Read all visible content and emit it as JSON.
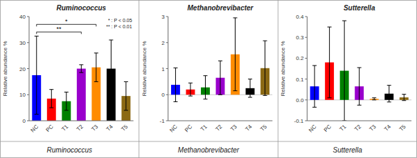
{
  "chart_data": [
    {
      "type": "bar",
      "title": "Ruminococcus",
      "caption": "Ruminococcus",
      "categories": [
        "NC",
        "PC",
        "T1",
        "T2",
        "T3",
        "T4",
        "T5"
      ],
      "values": [
        17.5,
        8.5,
        7.5,
        20.0,
        20.5,
        20.0,
        9.5
      ],
      "errors": [
        15.0,
        3.5,
        3.5,
        1.5,
        5.5,
        11.0,
        5.5
      ],
      "colors": [
        "#0000FF",
        "#FF0000",
        "#008000",
        "#9900CC",
        "#FF8C00",
        "#000000",
        "#8B6914"
      ],
      "ylabel": "Relative abundance %",
      "ylim": [
        0,
        40
      ],
      "yticks": [
        0,
        10,
        20,
        30,
        40
      ],
      "grid": false,
      "annotations": [
        {
          "text": "*",
          "from": "NC",
          "to": "T3"
        },
        {
          "text": "**",
          "from": "NC",
          "to": "T2"
        },
        {
          "text": "* : P < 0.05"
        },
        {
          "text": "** : P < 0.01"
        }
      ]
    },
    {
      "type": "bar",
      "title": "Methanobrevibacter",
      "caption": "Methanobrevibacter",
      "categories": [
        "NC",
        "PC",
        "T1",
        "T2",
        "T3",
        "T4",
        "T5"
      ],
      "values": [
        0.38,
        0.2,
        0.28,
        0.65,
        1.55,
        0.25,
        1.02
      ],
      "errors": [
        0.65,
        0.25,
        0.45,
        0.65,
        1.4,
        0.35,
        1.05
      ],
      "colors": [
        "#0000FF",
        "#FF0000",
        "#008000",
        "#9900CC",
        "#FF8C00",
        "#000000",
        "#8B6914"
      ],
      "ylabel": "Relative abundance %",
      "ylim": [
        -1,
        3
      ],
      "yticks": [
        -1,
        0,
        1,
        2,
        3
      ],
      "grid": false
    },
    {
      "type": "bar",
      "title": "Sutterella",
      "caption": "Sutterella",
      "categories": [
        "NC",
        "PC",
        "T1",
        "T2",
        "T3",
        "T4",
        "T5"
      ],
      "values": [
        0.065,
        0.18,
        0.14,
        0.065,
        0.005,
        0.03,
        0.012
      ],
      "errors": [
        0.1,
        0.17,
        0.24,
        0.09,
        0.005,
        0.04,
        0.015
      ],
      "colors": [
        "#0000FF",
        "#FF0000",
        "#008000",
        "#9900CC",
        "#FF8C00",
        "#000000",
        "#8B6914"
      ],
      "ylabel": "Relative abundance %",
      "ylim": [
        -0.1,
        0.4
      ],
      "yticks": [
        -0.1,
        {
          "value": 0.0,
          "label": "0.0"
        },
        0.1,
        0.2,
        0.3,
        0.4
      ],
      "grid": false
    }
  ]
}
